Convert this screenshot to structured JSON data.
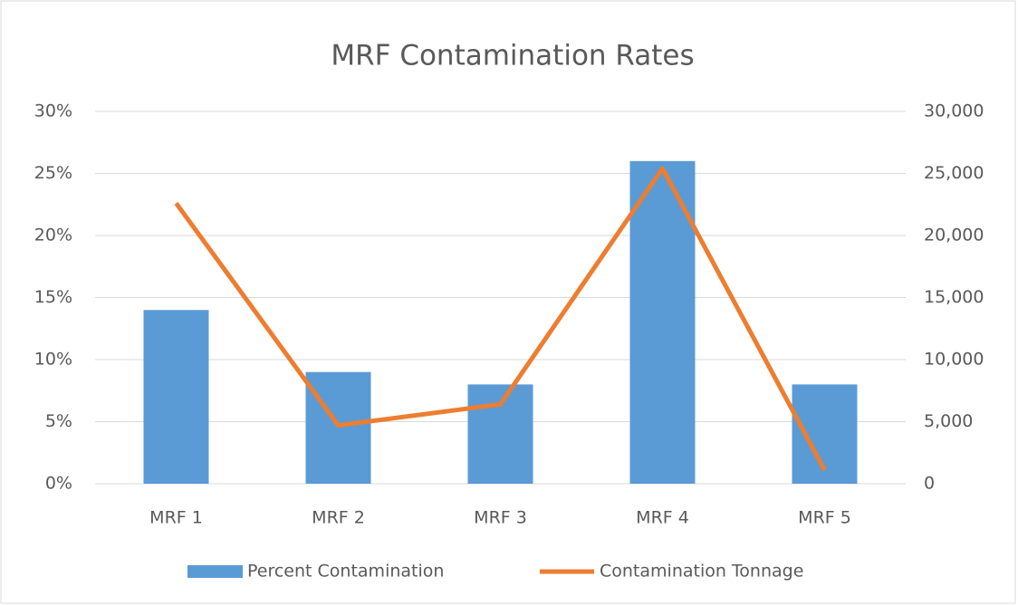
{
  "chart_data": {
    "type": "bar_line",
    "title": "MRF Contamination Rates",
    "categories": [
      "MRF 1",
      "MRF 2",
      "MRF 3",
      "MRF 4",
      "MRF 5"
    ],
    "series": [
      {
        "name": "Percent Contamination",
        "type": "bar",
        "color": "#5b9bd5",
        "values": [
          14,
          9,
          8,
          26,
          8
        ]
      },
      {
        "name": "Contamination Tonnage",
        "type": "line",
        "color": "#ed7d31",
        "axis": "y2",
        "values": [
          22600,
          4700,
          6400,
          25400,
          1100
        ]
      }
    ],
    "ylim": [
      0,
      30
    ],
    "yticks": [
      {
        "value": 0,
        "label": "0%"
      },
      {
        "value": 5,
        "label": "5%"
      },
      {
        "value": 10,
        "label": "10%"
      },
      {
        "value": 15,
        "label": "15%"
      },
      {
        "value": 20,
        "label": "20%"
      },
      {
        "value": 25,
        "label": "25%"
      },
      {
        "value": 30,
        "label": "30%"
      }
    ],
    "y2lim": [
      0,
      30000
    ],
    "y2ticks": [
      0,
      {
        "value": 5000,
        "label": "5,000"
      },
      {
        "value": 10000,
        "label": "10,000"
      },
      {
        "value": 15000,
        "label": "15,000"
      },
      {
        "value": 20000,
        "label": "20,000"
      },
      {
        "value": 25000,
        "label": "25,000"
      },
      {
        "value": 30000,
        "label": "30,000"
      }
    ],
    "grid": true,
    "legend": "bottom"
  }
}
